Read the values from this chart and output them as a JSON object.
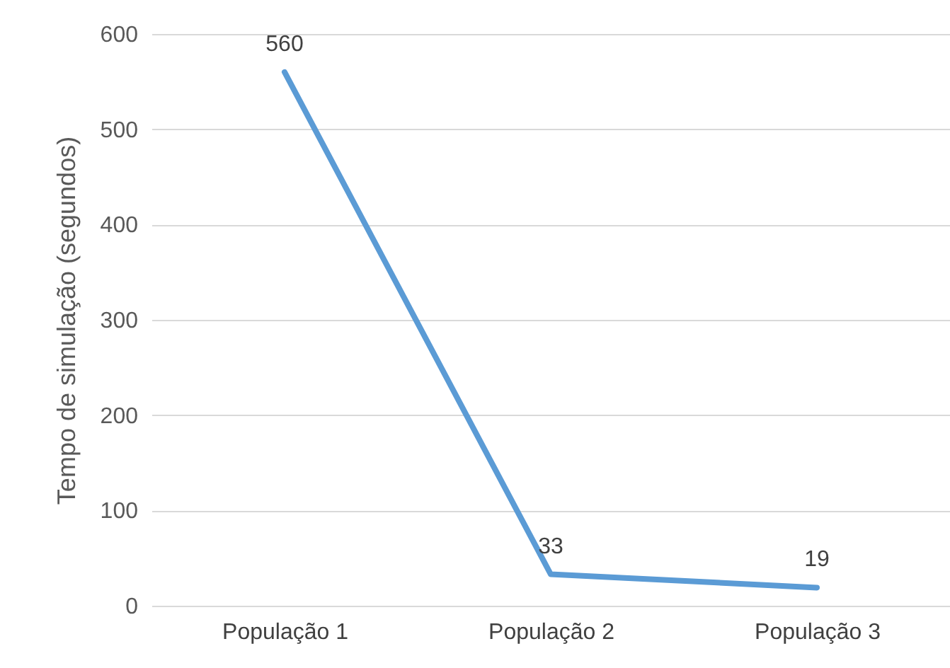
{
  "chart_data": {
    "type": "line",
    "ylabel": "Tempo de simulação (segundos)",
    "categories": [
      "População 1",
      "População 2",
      "População 3"
    ],
    "series": [
      {
        "color": "#5b9bd5",
        "values": [
          560,
          33,
          19
        ]
      }
    ],
    "ylim": [
      0,
      600
    ],
    "yticks": [
      0,
      100,
      200,
      300,
      400,
      500,
      600
    ],
    "grid": "y",
    "data_labels": true,
    "legend": false,
    "marker": "none"
  }
}
